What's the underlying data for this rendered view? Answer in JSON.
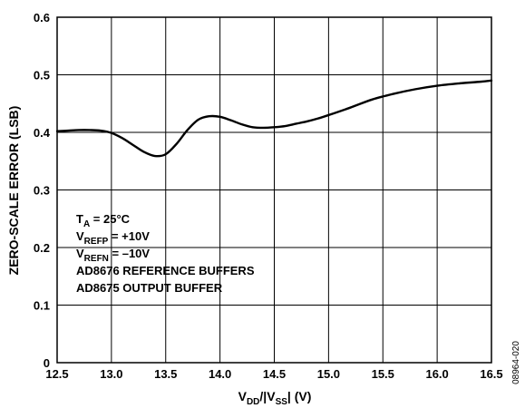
{
  "chart_data": {
    "type": "line",
    "title": "",
    "xlabel": {
      "prefix": "V",
      "sub1": "DD",
      "mid": "/|V",
      "sub2": "SS",
      "suffix": "| (V)"
    },
    "ylabel": "ZERO-SCALE ERROR (LSB)",
    "xlim": [
      12.5,
      16.5
    ],
    "ylim": [
      0,
      0.6
    ],
    "x_ticks": [
      "12.5",
      "13.0",
      "13.5",
      "14.0",
      "14.5",
      "15.0",
      "15.5",
      "16.0",
      "16.5"
    ],
    "y_ticks": [
      "0",
      "0.1",
      "0.2",
      "0.3",
      "0.4",
      "0.5",
      "0.6"
    ],
    "grid": true,
    "line_color": "#000000",
    "series": [
      {
        "x": [
          12.5,
          12.6,
          12.7,
          12.8,
          12.9,
          13.0,
          13.1,
          13.2,
          13.3,
          13.4,
          13.5,
          13.6,
          13.7,
          13.8,
          13.9,
          14.0,
          14.1,
          14.2,
          14.3,
          14.4,
          14.5,
          14.6,
          14.7,
          14.8,
          14.9,
          15.0,
          15.2,
          15.4,
          15.6,
          15.8,
          16.0,
          16.2,
          16.4,
          16.5
        ],
        "y": [
          0.402,
          0.403,
          0.404,
          0.404,
          0.403,
          0.399,
          0.39,
          0.378,
          0.366,
          0.359,
          0.362,
          0.38,
          0.404,
          0.422,
          0.428,
          0.427,
          0.421,
          0.414,
          0.409,
          0.408,
          0.409,
          0.411,
          0.415,
          0.419,
          0.424,
          0.43,
          0.443,
          0.457,
          0.467,
          0.475,
          0.481,
          0.485,
          0.488,
          0.49
        ]
      }
    ],
    "annotations": {
      "ta": {
        "main": "T",
        "sub": "A",
        "rest": " = 25°C"
      },
      "vrefp": {
        "main": "V",
        "sub": "REFP",
        "rest": " = +10V"
      },
      "vrefn": {
        "main": "V",
        "sub": "REFN",
        "rest": " = –10V"
      },
      "line4": "AD8676 REFERENCE BUFFERS",
      "line5": "AD8675 OUTPUT BUFFER"
    },
    "figure_id": "08964-020"
  }
}
